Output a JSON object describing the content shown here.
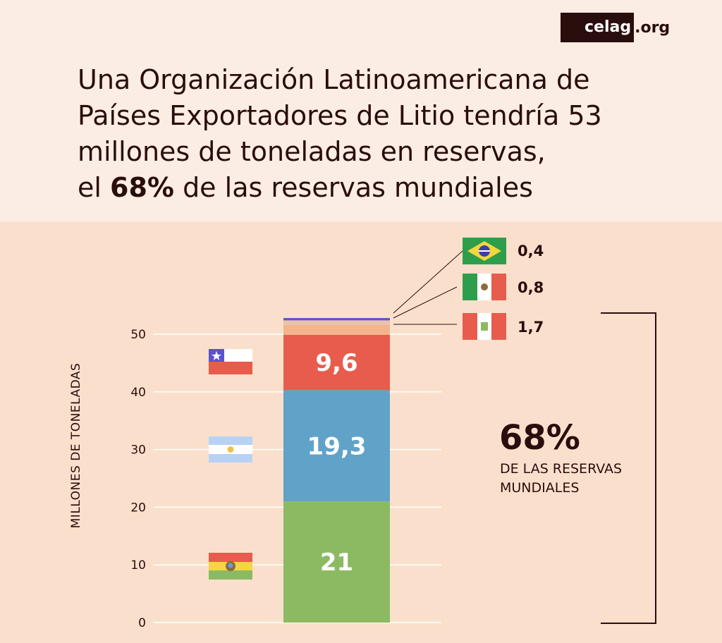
{
  "logo": {
    "main": "celag",
    "suffix": ".org"
  },
  "title": {
    "line1": "Una Organización Latinoamericana de",
    "line2": "Países Exportadores de Litio tendría 53",
    "line3": "millones de toneladas en reservas,",
    "line4_pre": "el ",
    "line4_bold": "68%",
    "line4_post": " de las reservas mundiales"
  },
  "chart_data": {
    "type": "bar",
    "stacked": true,
    "ylabel": "MILLONES DE TONELADAS",
    "ylim": [
      0,
      53.5
    ],
    "yticks": [
      "0",
      "10",
      "20",
      "30",
      "40",
      "50"
    ],
    "segments": [
      {
        "country": "Bolivia",
        "value": 21,
        "label": "21",
        "color": "#8cba62"
      },
      {
        "country": "Argentina",
        "value": 19.3,
        "label": "19,3",
        "color": "#61a2c9"
      },
      {
        "country": "Chile",
        "value": 9.6,
        "label": "9,6",
        "color": "#e75c4c"
      },
      {
        "country": "Perú",
        "value": 1.7,
        "label": "1,7",
        "color": "#f4b48d"
      },
      {
        "country": "México",
        "value": 0.8,
        "label": "0,8",
        "color": "#e9c2ab"
      },
      {
        "country": "Brasil",
        "value": 0.4,
        "label": "0,4",
        "color": "#5b52d1"
      }
    ],
    "annotation": {
      "value": "68%",
      "line1": "DE LAS RESERVAS",
      "line2": "MUNDIALES"
    }
  }
}
